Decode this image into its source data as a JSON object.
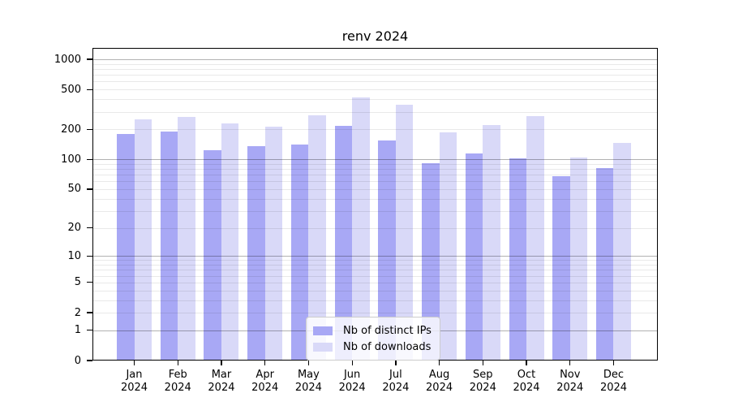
{
  "title": "renv 2024",
  "chart_data": {
    "type": "bar",
    "title": "renv 2024",
    "categories": [
      "Jan 2024",
      "Feb 2024",
      "Mar 2024",
      "Apr 2024",
      "May 2024",
      "Jun 2024",
      "Jul 2024",
      "Aug 2024",
      "Sep 2024",
      "Oct 2024",
      "Nov 2024",
      "Dec 2024"
    ],
    "series": [
      {
        "name": "Nb of distinct IPs",
        "color": "#a8a8f5",
        "values": [
          180,
          190,
          124,
          135,
          140,
          215,
          154,
          92,
          115,
          102,
          67,
          81
        ]
      },
      {
        "name": "Nb of downloads",
        "color": "#d9d9f8",
        "values": [
          252,
          268,
          230,
          212,
          275,
          415,
          350,
          188,
          220,
          272,
          105,
          147
        ]
      }
    ],
    "xlabel": "",
    "ylabel": "",
    "y_scale": "log1p",
    "y_ticks": [
      0,
      1,
      2,
      5,
      10,
      20,
      50,
      100,
      200,
      500,
      1000
    ],
    "y_max": 1300,
    "grid": {
      "orientation": "horizontal",
      "major_values": [
        1,
        10,
        100,
        1000
      ],
      "major_color": "rgba(0,0,0,0.30)",
      "minor_color": "rgba(0,0,0,0.085)"
    },
    "legend": {
      "position": "lower-center"
    }
  }
}
